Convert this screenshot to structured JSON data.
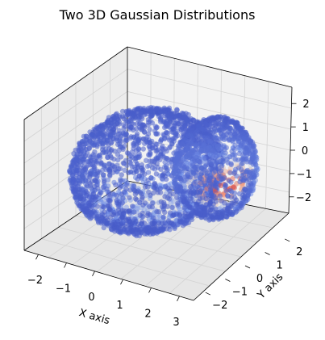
{
  "chart_data": {
    "type": "scatter3d",
    "title": "Two 3D Gaussian Distributions",
    "xlabel": "X axis",
    "ylabel": "Y axis",
    "zlabel": "",
    "x_ticks": [
      "−2",
      "−1",
      "0",
      "1",
      "2",
      "3"
    ],
    "y_ticks": [
      "−2",
      "−1",
      "0",
      "1",
      "2"
    ],
    "z_ticks": [
      "−2",
      "−1",
      "0",
      "1",
      "2"
    ],
    "xlim": [
      -2.5,
      3.5
    ],
    "ylim": [
      -2.6,
      2.6
    ],
    "zlim": [
      -2.7,
      2.7
    ],
    "colormap": "coolwarm",
    "colors": {
      "low": "#3b4cc0",
      "mid": "#dddcdc",
      "high": "#b40426"
    },
    "series": [
      {
        "center": [
          0.0,
          0.0,
          0.0
        ],
        "radii": [
          2.2,
          2.4,
          2.2
        ],
        "peak": 0.35
      },
      {
        "center": [
          1.6,
          1.2,
          0.0
        ],
        "radii": [
          1.2,
          1.3,
          2.0
        ],
        "peak": 1.0
      }
    ],
    "grid": true
  }
}
